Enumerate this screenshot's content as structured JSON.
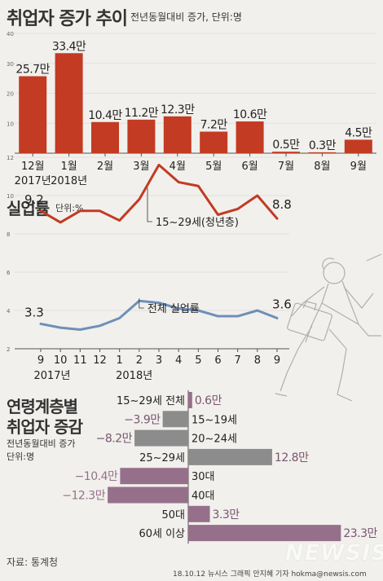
{
  "colors": {
    "red": "#c23b22",
    "blue": "#6f8fb8",
    "gray": "#8c8c8c",
    "purple": "#96708a",
    "axis": "#555555"
  },
  "panel1": {
    "title": "취업자 증가 추이",
    "subtitle": "전년동월대비 증가, 단위:명"
  },
  "panel2": {
    "title": "실업률",
    "unit": "단위:%"
  },
  "panel3": {
    "title_line1": "연령계층별",
    "title_line2": "취업자 증감",
    "sub_line1": "전년동월대비 증가",
    "sub_line2": "단위:명"
  },
  "footer": {
    "source": "자료: 통계청",
    "credit": "18.10.12  뉴시스 그래픽 안지혜 기자  hokma@newsis.com",
    "logo": "NEWSIS"
  },
  "chart_data": [
    {
      "type": "bar",
      "title": "취업자 증가 추이",
      "subtitle": "전년동월대비 증가, 단위:명",
      "categories": [
        "12월",
        "1월",
        "2월",
        "3월",
        "4월",
        "5월",
        "6월",
        "7월",
        "8월",
        "9월"
      ],
      "year_labels": [
        "2017년",
        "2018년"
      ],
      "values": [
        25.7,
        33.4,
        10.4,
        11.2,
        12.3,
        7.2,
        10.6,
        0.5,
        0.3,
        4.5
      ],
      "data_labels": [
        "25.7만",
        "33.4만",
        "10.4만",
        "11.2만",
        "12.3만",
        "7.2만",
        "10.6만",
        "0.5만",
        "0.3만",
        "4.5만"
      ],
      "yticks": [
        10,
        20,
        30,
        40
      ],
      "ylim": [
        0,
        40
      ]
    },
    {
      "type": "line",
      "title": "실업률",
      "unit": "단위:%",
      "categories": [
        "9",
        "10",
        "11",
        "12",
        "1",
        "2",
        "3",
        "4",
        "5",
        "6",
        "7",
        "8",
        "9"
      ],
      "year_labels": [
        "2017년",
        "2018년"
      ],
      "series": [
        {
          "name": "15~29세(청년층)",
          "values": [
            9.2,
            8.6,
            9.2,
            9.2,
            8.7,
            9.8,
            11.6,
            10.7,
            10.5,
            9.0,
            9.3,
            10.0,
            8.8
          ],
          "start_label": "9.2",
          "end_label": "8.8"
        },
        {
          "name": "전체 실업률",
          "values": [
            3.3,
            3.1,
            3.0,
            3.2,
            3.6,
            4.5,
            4.4,
            4.1,
            4.0,
            3.7,
            3.7,
            4.0,
            3.6
          ],
          "start_label": "3.3",
          "end_label": "3.6"
        }
      ],
      "yticks": [
        2,
        4,
        6,
        8,
        10,
        12
      ],
      "ylim": [
        2,
        13
      ]
    },
    {
      "type": "bar",
      "orientation": "horizontal",
      "title": "연령계층별 취업자 증감",
      "categories": [
        "15~29세 전체",
        "15~19세",
        "20~24세",
        "25~29세",
        "30대",
        "40대",
        "50대",
        "60세 이상"
      ],
      "values": [
        0.6,
        -3.9,
        -8.2,
        12.8,
        -10.4,
        -12.3,
        3.3,
        23.3
      ],
      "data_labels": [
        "0.6만",
        "−3.9만",
        "−8.2만",
        "12.8만",
        "−10.4만",
        "−12.3만",
        "3.3만",
        "23.3만"
      ]
    }
  ]
}
